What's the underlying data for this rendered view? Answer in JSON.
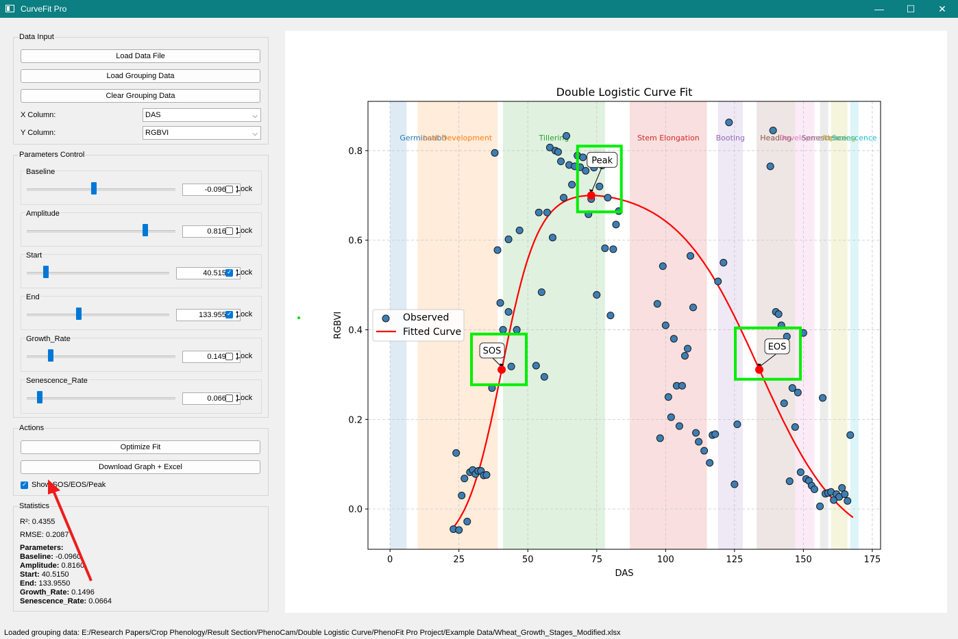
{
  "window": {
    "title": "CurveFit Pro",
    "minimize": "—",
    "maximize": "☐",
    "close": "✕"
  },
  "data_input": {
    "title": "Data Input",
    "load_data": "Load Data File",
    "load_grouping": "Load Grouping Data",
    "clear_grouping": "Clear Grouping Data",
    "x_label": "X Column:",
    "x_value": "DAS",
    "y_label": "Y Column:",
    "y_value": "RGBVI"
  },
  "params": {
    "title": "Parameters Control",
    "lock_label": "Lock",
    "items": [
      {
        "name": "Baseline",
        "value": "-0.0960",
        "slider": 0.45,
        "locked": false
      },
      {
        "name": "Amplitude",
        "value": "0.8160",
        "slider": 0.81,
        "locked": false
      },
      {
        "name": "Start",
        "value": "40.5150",
        "slider": 0.12,
        "locked": true
      },
      {
        "name": "End",
        "value": "133.9550",
        "slider": 0.36,
        "locked": true
      },
      {
        "name": "Growth_Rate",
        "value": "0.1496",
        "slider": 0.15,
        "locked": false
      },
      {
        "name": "Senescence_Rate",
        "value": "0.0664",
        "slider": 0.07,
        "locked": false
      }
    ]
  },
  "actions": {
    "title": "Actions",
    "optimize": "Optimize Fit",
    "download": "Download Graph + Excel",
    "show_markers": "Show SOS/EOS/Peak",
    "show_markers_checked": true
  },
  "stats": {
    "title": "Statistics",
    "r2": "R²: 0.4355",
    "rmse": "RMSE: 0.2087",
    "params_header": "Parameters:",
    "lines": [
      {
        "k": "Baseline:",
        "v": " -0.0960"
      },
      {
        "k": "Amplitude:",
        "v": " 0.8160"
      },
      {
        "k": "Start:",
        "v": " 40.5150"
      },
      {
        "k": "End:",
        "v": " 133.9550"
      },
      {
        "k": "Growth_Rate:",
        "v": " 0.1496"
      },
      {
        "k": "Senescence_Rate:",
        "v": " 0.0664"
      }
    ]
  },
  "status": "Loaded grouping data: E:/Research Papers/Crop Phenology/Result Section/PhenoCam/Double Logistic Curve/PhenoFit Pro Project/Example Data/Wheat_Growth_Stages_Modified.xlsx",
  "chart_data": {
    "type": "scatter",
    "title": "Double Logistic Curve Fit",
    "xlabel": "DAS",
    "ylabel": "RGBVI",
    "xlim": [
      -8,
      178
    ],
    "ylim": [
      -0.09,
      0.91
    ],
    "xticks": [
      0,
      25,
      50,
      75,
      100,
      125,
      150,
      175
    ],
    "yticks": [
      0.0,
      0.2,
      0.4,
      0.6,
      0.8
    ],
    "grid": true,
    "legend_position": "center-left",
    "legend": [
      "Observed",
      "Fitted Curve"
    ],
    "colors": {
      "observed": "#3d7fb4",
      "fit": "#ff0000",
      "marker_box": "#00ee00"
    },
    "stages": [
      {
        "name": "Germination",
        "start": 0,
        "end": 6,
        "color": "#1f77b4"
      },
      {
        "name": "Leaf Development",
        "start": 10,
        "end": 39,
        "color": "#ff7f0e"
      },
      {
        "name": "Tillering",
        "start": 41,
        "end": 78,
        "color": "#2ca02c"
      },
      {
        "name": "Stem Elongation",
        "start": 87,
        "end": 115,
        "color": "#d62728"
      },
      {
        "name": "Booting",
        "start": 119,
        "end": 128,
        "color": "#9467bd"
      },
      {
        "name": "Heading",
        "start": 133,
        "end": 147,
        "color": "#8c564b"
      },
      {
        "name": "Development",
        "start": 147,
        "end": 154,
        "color": "#e377c2"
      },
      {
        "name": "Senescence",
        "start": 156,
        "end": 159,
        "color": "#7f7f7f"
      },
      {
        "name": "Ripening",
        "start": 160,
        "end": 166,
        "color": "#bcbd22"
      },
      {
        "name": "Senescence",
        "start": 167,
        "end": 170,
        "color": "#17becf"
      }
    ],
    "fit": {
      "baseline": -0.096,
      "amplitude": 0.816,
      "start": 40.515,
      "end": 133.955,
      "growth_rate": 0.1496,
      "senescence_rate": 0.0664,
      "x_from": 22,
      "x_to": 168
    },
    "markers": [
      {
        "label": "SOS",
        "x": 40.5,
        "y": 0.311
      },
      {
        "label": "Peak",
        "x": 73,
        "y": 0.7
      },
      {
        "label": "EOS",
        "x": 134,
        "y": 0.311
      }
    ],
    "observed": [
      [
        23,
        -0.045
      ],
      [
        25,
        -0.047
      ],
      [
        24,
        0.125
      ],
      [
        26,
        0.03
      ],
      [
        27,
        0.068
      ],
      [
        28,
        -0.028
      ],
      [
        29,
        0.082
      ],
      [
        30,
        0.087
      ],
      [
        31,
        0.078
      ],
      [
        32,
        0.085
      ],
      [
        33,
        0.085
      ],
      [
        34,
        0.075
      ],
      [
        35,
        0.076
      ],
      [
        37,
        0.27
      ],
      [
        38,
        0.795
      ],
      [
        39,
        0.578
      ],
      [
        40,
        0.46
      ],
      [
        41,
        0.4
      ],
      [
        43,
        0.44
      ],
      [
        44,
        0.318
      ],
      [
        46,
        0.4
      ],
      [
        47,
        0.622
      ],
      [
        43,
        0.602
      ],
      [
        53,
        0.32
      ],
      [
        54,
        0.662
      ],
      [
        55,
        0.484
      ],
      [
        56,
        0.295
      ],
      [
        57,
        0.662
      ],
      [
        58,
        0.807
      ],
      [
        59,
        0.606
      ],
      [
        60,
        0.8
      ],
      [
        61,
        0.797
      ],
      [
        62,
        0.776
      ],
      [
        63,
        0.695
      ],
      [
        64,
        0.833
      ],
      [
        65,
        0.768
      ],
      [
        66,
        0.724
      ],
      [
        67,
        0.765
      ],
      [
        68,
        0.789
      ],
      [
        69,
        0.763
      ],
      [
        70,
        0.785
      ],
      [
        71,
        0.755
      ],
      [
        72,
        0.658
      ],
      [
        73,
        0.692
      ],
      [
        74,
        0.762
      ],
      [
        75,
        0.478
      ],
      [
        76,
        0.72
      ],
      [
        77,
        0.767
      ],
      [
        78,
        0.582
      ],
      [
        79,
        0.695
      ],
      [
        80,
        0.432
      ],
      [
        81,
        0.58
      ],
      [
        82,
        0.635
      ],
      [
        83,
        0.665
      ],
      [
        97,
        0.458
      ],
      [
        98,
        0.158
      ],
      [
        99,
        0.542
      ],
      [
        100,
        0.41
      ],
      [
        101,
        0.25
      ],
      [
        102,
        0.205
      ],
      [
        103,
        0.38
      ],
      [
        104,
        0.275
      ],
      [
        105,
        0.185
      ],
      [
        106,
        0.275
      ],
      [
        107,
        0.342
      ],
      [
        108,
        0.358
      ],
      [
        109,
        0.565
      ],
      [
        110,
        0.45
      ],
      [
        111,
        0.17
      ],
      [
        112,
        0.15
      ],
      [
        114,
        0.13
      ],
      [
        116,
        0.103
      ],
      [
        117,
        0.165
      ],
      [
        118,
        0.167
      ],
      [
        119,
        0.508
      ],
      [
        121,
        0.55
      ],
      [
        123,
        0.863
      ],
      [
        125,
        0.055
      ],
      [
        126,
        0.189
      ],
      [
        138,
        0.765
      ],
      [
        139,
        0.845
      ],
      [
        140,
        0.44
      ],
      [
        141,
        0.435
      ],
      [
        142,
        0.41
      ],
      [
        143,
        0.236
      ],
      [
        144,
        0.385
      ],
      [
        145,
        0.062
      ],
      [
        146,
        0.27
      ],
      [
        147,
        0.183
      ],
      [
        148,
        0.26
      ],
      [
        149,
        0.082
      ],
      [
        150,
        0.393
      ],
      [
        151,
        0.067
      ],
      [
        152,
        0.063
      ],
      [
        153,
        0.052
      ],
      [
        154,
        0.044
      ],
      [
        156,
        0.006
      ],
      [
        157,
        0.248
      ],
      [
        158,
        0.034
      ],
      [
        159,
        0.036
      ],
      [
        160,
        0.038
      ],
      [
        161,
        0.02
      ],
      [
        162,
        0.033
      ],
      [
        163,
        0.027
      ],
      [
        164,
        0.047
      ],
      [
        165,
        0.033
      ],
      [
        166,
        0.018
      ],
      [
        167,
        0.165
      ]
    ]
  }
}
